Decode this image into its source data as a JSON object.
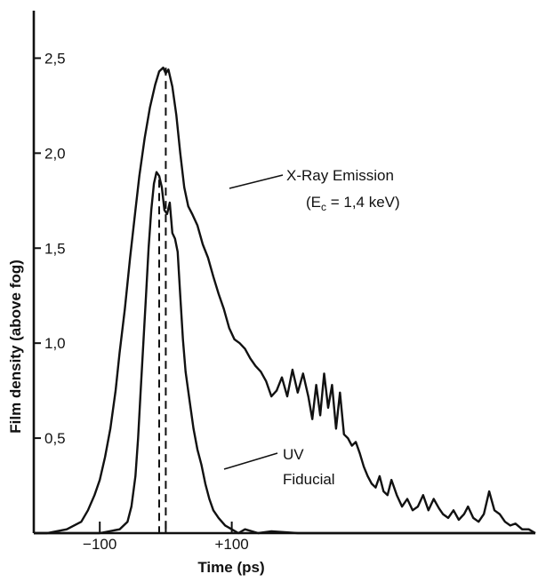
{
  "chart_data": {
    "type": "line",
    "title": "",
    "xlabel": "Time (ps)",
    "ylabel": "Film density (above fog)",
    "xlim": [
      -200,
      560
    ],
    "ylim": [
      0,
      2.75
    ],
    "x_ticks": [
      {
        "value": -100,
        "label": "−100"
      },
      {
        "value": 0,
        "label": ""
      },
      {
        "value": 100,
        "label": "+100"
      }
    ],
    "y_ticks": [
      {
        "value": 0.5,
        "label": "0,5"
      },
      {
        "value": 1.0,
        "label": "1,0"
      },
      {
        "value": 1.5,
        "label": "1,5"
      },
      {
        "value": 2.0,
        "label": "2,0"
      },
      {
        "value": 2.5,
        "label": "2,5"
      }
    ],
    "grid": false,
    "legend": "none",
    "series": [
      {
        "name": "X-Ray Emission",
        "x": [
          -235,
          -180,
          -150,
          -128,
          -118,
          -108,
          -100,
          -92,
          -84,
          -76,
          -70,
          -62,
          -54,
          -46,
          -40,
          -32,
          -24,
          -16,
          -10,
          -4,
          0,
          4,
          10,
          16,
          22,
          28,
          34,
          40,
          48,
          56,
          64,
          72,
          80,
          88,
          96,
          104,
          112,
          120,
          128,
          136,
          144,
          152,
          160,
          168,
          176,
          184,
          192,
          200,
          208,
          216,
          222,
          228,
          234,
          240,
          246,
          252,
          258,
          264,
          270,
          276,
          282,
          288,
          294,
          300,
          306,
          312,
          318,
          324,
          330,
          336,
          342,
          350,
          358,
          366,
          374,
          382,
          390,
          398,
          406,
          414,
          420,
          428,
          436,
          444,
          452,
          458,
          466,
          474,
          482,
          490,
          498,
          506,
          514,
          522,
          530,
          540,
          550,
          560
        ],
        "y": [
          0.0,
          0.0,
          0.02,
          0.06,
          0.12,
          0.2,
          0.28,
          0.4,
          0.55,
          0.75,
          0.95,
          1.18,
          1.45,
          1.7,
          1.88,
          2.08,
          2.24,
          2.36,
          2.43,
          2.45,
          2.42,
          2.44,
          2.35,
          2.2,
          2.0,
          1.82,
          1.72,
          1.68,
          1.62,
          1.52,
          1.45,
          1.35,
          1.26,
          1.18,
          1.08,
          1.02,
          1.0,
          0.97,
          0.92,
          0.88,
          0.85,
          0.8,
          0.72,
          0.75,
          0.82,
          0.72,
          0.86,
          0.74,
          0.84,
          0.72,
          0.6,
          0.78,
          0.62,
          0.84,
          0.66,
          0.78,
          0.55,
          0.74,
          0.52,
          0.5,
          0.46,
          0.48,
          0.42,
          0.35,
          0.3,
          0.26,
          0.24,
          0.3,
          0.22,
          0.2,
          0.28,
          0.2,
          0.14,
          0.18,
          0.12,
          0.14,
          0.2,
          0.12,
          0.18,
          0.13,
          0.1,
          0.08,
          0.12,
          0.07,
          0.1,
          0.14,
          0.08,
          0.06,
          0.1,
          0.22,
          0.12,
          0.1,
          0.06,
          0.04,
          0.05,
          0.02,
          0.02,
          0.0
        ]
      },
      {
        "name": "UV Fiducial",
        "x": [
          -235,
          -100,
          -70,
          -58,
          -52,
          -46,
          -42,
          -38,
          -34,
          -30,
          -26,
          -22,
          -18,
          -14,
          -10,
          -6,
          -2,
          2,
          6,
          10,
          14,
          18,
          22,
          26,
          30,
          36,
          42,
          48,
          54,
          60,
          66,
          72,
          80,
          90,
          100,
          110,
          120,
          140,
          160,
          200,
          260,
          320,
          400,
          480,
          560
        ],
        "y": [
          0.0,
          0.0,
          0.02,
          0.06,
          0.14,
          0.3,
          0.5,
          0.75,
          1.0,
          1.25,
          1.5,
          1.7,
          1.84,
          1.9,
          1.88,
          1.82,
          1.7,
          1.68,
          1.74,
          1.58,
          1.55,
          1.48,
          1.25,
          1.02,
          0.85,
          0.7,
          0.55,
          0.44,
          0.36,
          0.26,
          0.18,
          0.12,
          0.08,
          0.04,
          0.02,
          0.0,
          0.02,
          0.0,
          0.01,
          0.0,
          0.0,
          0.0,
          0.0,
          0.0,
          0.0
        ]
      }
    ],
    "dashed_lines": [
      {
        "x": -10,
        "y_top": 1.86
      },
      {
        "x": 0,
        "y_top": 2.45
      }
    ],
    "annotations": [
      {
        "id": "xray",
        "lines": [
          "X-Ray Emission",
          "(E",
          "c",
          " = 1,4 keV)"
        ],
        "point_x": 22,
        "point_y": 1.52
      },
      {
        "id": "uv",
        "lines": [
          "UV",
          "Fiducial"
        ],
        "point_x": 68,
        "point_y": 0.42
      }
    ]
  }
}
